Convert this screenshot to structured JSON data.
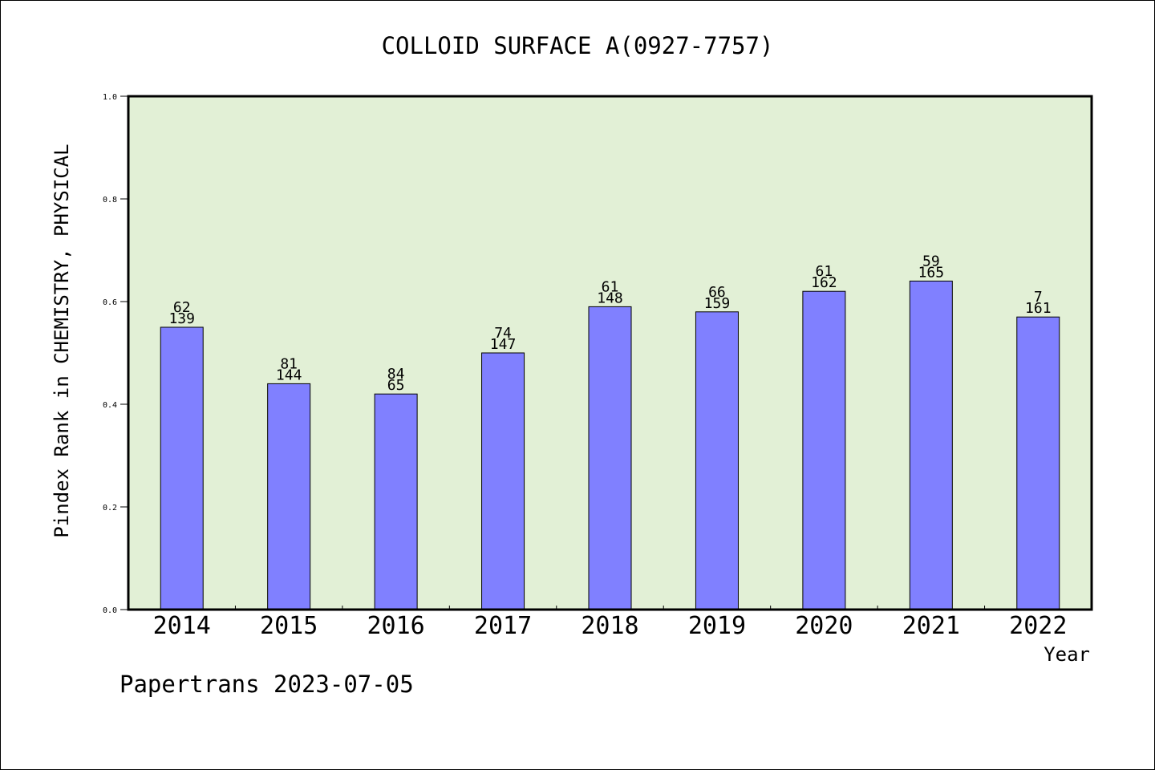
{
  "chart_data": {
    "type": "bar",
    "title": "COLLOID SURFACE A(0927-7757)",
    "xlabel": "Year",
    "ylabel": "Pindex Rank in CHEMISTRY, PHYSICAL",
    "categories": [
      "2014",
      "2015",
      "2016",
      "2017",
      "2018",
      "2019",
      "2020",
      "2021",
      "2022"
    ],
    "values": [
      0.55,
      0.44,
      0.42,
      0.5,
      0.59,
      0.58,
      0.62,
      0.64,
      0.57
    ],
    "label_top": [
      "62",
      "81",
      "84",
      "74",
      "61",
      "66",
      "61",
      "59",
      "7"
    ],
    "label_bottom": [
      "139",
      "144",
      "65",
      "147",
      "148",
      "159",
      "162",
      "165",
      "161"
    ],
    "yticks": [
      "0.0",
      "0.2",
      "0.4",
      "0.6",
      "0.8",
      "1.0"
    ],
    "ylim": [
      0,
      1.0
    ],
    "grid": false,
    "legend": "none",
    "colors": {
      "bar": "#8080ff",
      "plot_background": "#e2f0d6",
      "axis": "#000000"
    }
  },
  "footer": {
    "text": "Papertrans 2023-07-05"
  }
}
